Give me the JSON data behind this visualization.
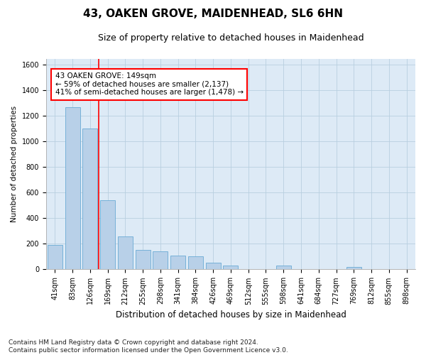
{
  "title": "43, OAKEN GROVE, MAIDENHEAD, SL6 6HN",
  "subtitle": "Size of property relative to detached houses in Maidenhead",
  "xlabel": "Distribution of detached houses by size in Maidenhead",
  "ylabel": "Number of detached properties",
  "categories": [
    "41sqm",
    "83sqm",
    "126sqm",
    "169sqm",
    "212sqm",
    "255sqm",
    "298sqm",
    "341sqm",
    "384sqm",
    "426sqm",
    "469sqm",
    "512sqm",
    "555sqm",
    "598sqm",
    "641sqm",
    "684sqm",
    "727sqm",
    "769sqm",
    "812sqm",
    "855sqm",
    "898sqm"
  ],
  "values": [
    190,
    1270,
    1100,
    540,
    260,
    150,
    140,
    110,
    100,
    50,
    30,
    0,
    0,
    30,
    0,
    0,
    0,
    20,
    0,
    0,
    0
  ],
  "bar_color": "#b8d0e8",
  "bar_edge_color": "#6aaad4",
  "vline_color": "red",
  "vline_xindex": 2,
  "annotation_text": "43 OAKEN GROVE: 149sqm\n← 59% of detached houses are smaller (2,137)\n41% of semi-detached houses are larger (1,478) →",
  "annotation_box_color": "white",
  "annotation_box_edge_color": "red",
  "ylim": [
    0,
    1650
  ],
  "yticks": [
    0,
    200,
    400,
    600,
    800,
    1000,
    1200,
    1400,
    1600
  ],
  "grid_color": "#b8cfe0",
  "bg_color": "#ddeaf6",
  "footer": "Contains HM Land Registry data © Crown copyright and database right 2024.\nContains public sector information licensed under the Open Government Licence v3.0.",
  "title_fontsize": 11,
  "subtitle_fontsize": 9,
  "xlabel_fontsize": 8.5,
  "ylabel_fontsize": 7.5,
  "tick_fontsize": 7,
  "annotation_fontsize": 7.5,
  "footer_fontsize": 6.5
}
